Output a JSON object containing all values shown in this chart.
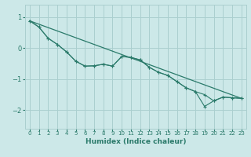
{
  "xlabel": "Humidex (Indice chaleur)",
  "bg_color": "#cce8e8",
  "grid_color": "#aacfcf",
  "line_color": "#2a7a6a",
  "xlim": [
    -0.5,
    23.5
  ],
  "ylim": [
    -2.6,
    1.4
  ],
  "yticks": [
    1,
    0,
    -1,
    -2
  ],
  "xticks": [
    0,
    1,
    2,
    3,
    4,
    5,
    6,
    7,
    8,
    9,
    10,
    11,
    12,
    13,
    14,
    15,
    16,
    17,
    18,
    19,
    20,
    21,
    22,
    23
  ],
  "line1_x": [
    0,
    1,
    2,
    3,
    4,
    5,
    6,
    7,
    8,
    9,
    10,
    11,
    12,
    13,
    14,
    15,
    16,
    17,
    18,
    19,
    20,
    21,
    22,
    23
  ],
  "line1_y": [
    0.88,
    0.68,
    0.32,
    0.12,
    -0.12,
    -0.42,
    -0.58,
    -0.57,
    -0.52,
    -0.58,
    -0.27,
    -0.3,
    -0.38,
    -0.62,
    -0.78,
    -0.88,
    -1.08,
    -1.28,
    -1.4,
    -1.5,
    -1.7,
    -1.58,
    -1.6,
    -1.62
  ],
  "line2_x": [
    0,
    1,
    2,
    3,
    4,
    5,
    6,
    7,
    8,
    9,
    10,
    11,
    12,
    13,
    14,
    15,
    16,
    17,
    18,
    19,
    20,
    21,
    22,
    23
  ],
  "line2_y": [
    0.88,
    0.68,
    0.32,
    0.12,
    -0.12,
    -0.42,
    -0.58,
    -0.57,
    -0.52,
    -0.58,
    -0.27,
    -0.3,
    -0.38,
    -0.62,
    -0.78,
    -0.88,
    -1.08,
    -1.28,
    -1.4,
    -1.88,
    -1.7,
    -1.58,
    -1.6,
    -1.62
  ],
  "straight_line_x": [
    0,
    23
  ],
  "straight_line_y": [
    0.88,
    -1.62
  ],
  "tick_color": "#2a7a6a",
  "xlabel_fontsize": 6.5,
  "xtick_fontsize": 5.0,
  "ytick_fontsize": 6.0
}
